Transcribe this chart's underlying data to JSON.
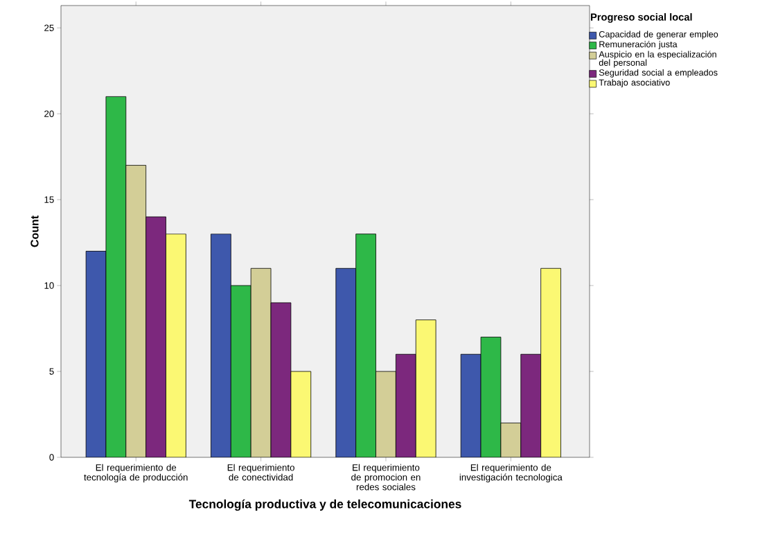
{
  "chart_data": {
    "type": "bar",
    "xlabel": "Tecnología productiva y de telecomunicaciones",
    "ylabel": "Count",
    "legend_title": "Progreso social local",
    "legend": "top right",
    "categories": [
      "El requerimiento de tecnología de producción",
      "El requerimiento de conectividad",
      "El requerimiento de promocion en redes sociales",
      "El requerimiento de investigación tecnologica"
    ],
    "series": [
      {
        "name": "Capacidad de generar empleo",
        "color": "#3e58ac",
        "values": [
          12,
          13,
          11,
          6
        ]
      },
      {
        "name": "Remuneración justa",
        "color": "#2eb848",
        "values": [
          21,
          10,
          13,
          7
        ]
      },
      {
        "name": "Auspicio en la especialización del personal",
        "color": "#d3ce97",
        "values": [
          17,
          11,
          5,
          2
        ]
      },
      {
        "name": "Seguridad social a empleados",
        "color": "#7c287d",
        "values": [
          14,
          9,
          6,
          6
        ]
      },
      {
        "name": "Trabajo asociativo",
        "color": "#fbf873",
        "values": [
          13,
          5,
          8,
          11
        ]
      }
    ],
    "ylim": [
      0,
      26.3
    ],
    "yticks": [
      0,
      5,
      10,
      15,
      20,
      25
    ]
  }
}
